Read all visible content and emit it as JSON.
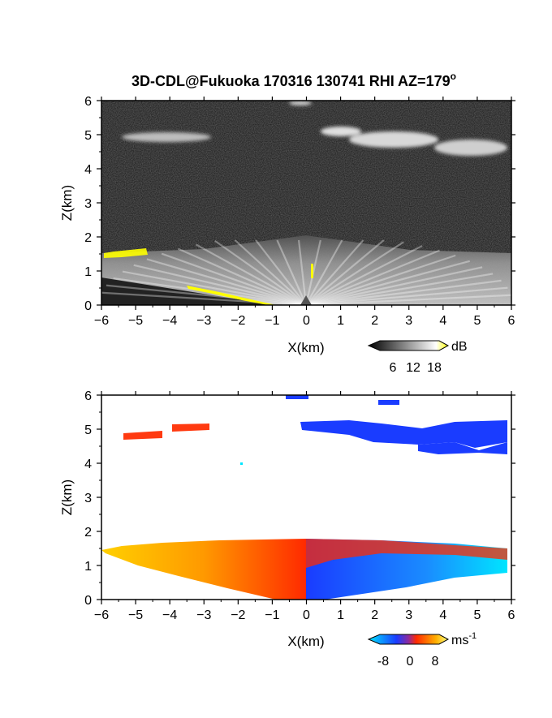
{
  "figure": {
    "title": "3D-CDL@Fukuoka 170316 130741 RHI AZ=179",
    "title_superscript": "o"
  },
  "chart_data": [
    {
      "type": "heatmap",
      "panel": "top",
      "quantity": "intensity",
      "xlabel": "X(km)",
      "ylabel": "Z(km)",
      "xlim": [
        -6,
        6
      ],
      "ylim": [
        0,
        6
      ],
      "xticks": [
        "-6",
        "-5",
        "-4",
        "-3",
        "-2",
        "-1",
        "0",
        "1",
        "2",
        "3",
        "4",
        "5",
        "6"
      ],
      "yticks": [
        "0",
        "1",
        "2",
        "3",
        "4",
        "5",
        "6"
      ],
      "colorbar": {
        "unit": "dB",
        "ticks": [
          "6",
          "12",
          "18"
        ],
        "range": [
          0,
          20
        ],
        "colors": [
          "#000000",
          "#ffffff",
          "#ffff00"
        ]
      },
      "background_color": "#2a2a2a",
      "features": [
        {
          "name": "boundary-layer",
          "x": [
            -6,
            6
          ],
          "z": [
            0,
            1.6
          ],
          "value_db": 12
        },
        {
          "name": "cloud",
          "x": [
            -5.2,
            -3.2
          ],
          "z": [
            4.8,
            5.2
          ],
          "value_db": 10
        },
        {
          "name": "cloud",
          "x": [
            0.3,
            6
          ],
          "z": [
            4.6,
            5.4
          ],
          "value_db": 10
        },
        {
          "name": "cloud",
          "x": [
            -0.5,
            0.1
          ],
          "z": [
            5.9,
            6.0
          ],
          "value_db": 10
        }
      ]
    },
    {
      "type": "heatmap",
      "panel": "bottom",
      "quantity": "radial velocity",
      "xlabel": "X(km)",
      "ylabel": "Z(km)",
      "xlim": [
        -6,
        6
      ],
      "ylim": [
        0,
        6
      ],
      "xticks": [
        "-6",
        "-5",
        "-4",
        "-3",
        "-2",
        "-1",
        "0",
        "1",
        "2",
        "3",
        "4",
        "5",
        "6"
      ],
      "yticks": [
        "0",
        "1",
        "2",
        "3",
        "4",
        "5",
        "6"
      ],
      "colorbar": {
        "unit": "ms",
        "unit_superscript": "-1",
        "ticks": [
          "-8",
          "0",
          "8"
        ],
        "range": [
          -10,
          10
        ],
        "colors": [
          "#00e5ff",
          "#1a3cff",
          "#ff2a00",
          "#ffff80"
        ]
      },
      "features": [
        {
          "name": "boundary-layer-west",
          "x": [
            -6,
            0
          ],
          "z": [
            0,
            1.65
          ],
          "velocity": 5
        },
        {
          "name": "boundary-layer-east",
          "x": [
            0,
            6
          ],
          "z": [
            0,
            1.6
          ],
          "velocity": -5
        },
        {
          "name": "cloud",
          "x": [
            -5.3,
            -3.2
          ],
          "z": [
            4.75,
            5.1
          ],
          "velocity": 5
        },
        {
          "name": "cloud",
          "x": [
            0,
            6
          ],
          "z": [
            4.3,
            5.3
          ],
          "velocity": -6
        }
      ]
    }
  ]
}
